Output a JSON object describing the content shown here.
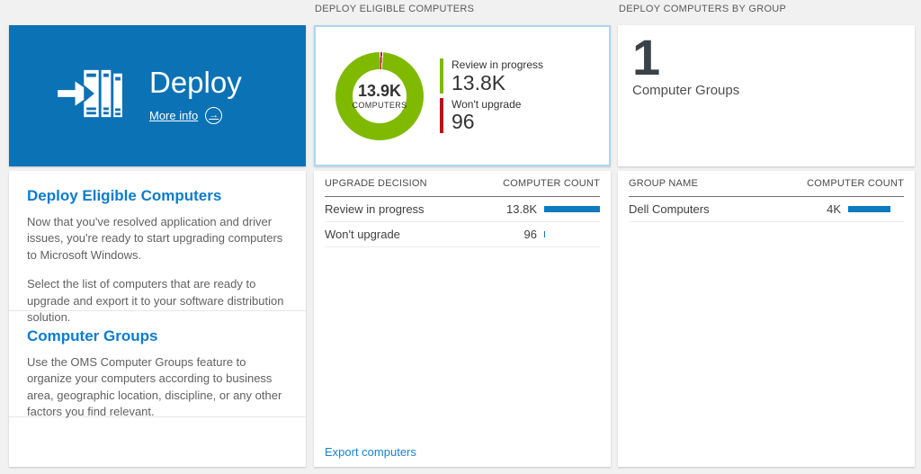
{
  "colors": {
    "page_bg": "#f1f1f1",
    "tile_blue": "#0b72b5",
    "accent_blue": "#0c7ccd",
    "link_blue": "#1583d8",
    "bar_blue": "#0f7abf",
    "selected_border": "#a9d7f2",
    "donut_green": "#7fba00",
    "donut_red": "#ba141a"
  },
  "left": {
    "tile": {
      "title": "Deploy",
      "more_info_label": "More info",
      "arrow_glyph": "→"
    },
    "sections": [
      {
        "heading": "Deploy Eligible Computers",
        "par1": "Now that you've resolved application and driver issues, you're ready to start upgrading computers to Microsoft Windows.",
        "par2": "Select the list of computers that are ready to upgrade and export it to your software distribution solution."
      },
      {
        "heading": "Computer Groups",
        "par1": "Use the OMS Computer Groups feature to organize your computers according to business area, geographic location, discipline, or any other factors you find relevant."
      }
    ]
  },
  "middle": {
    "header": "DEPLOY ELIGIBLE COMPUTERS",
    "donut": {
      "center_value": "13.9K",
      "center_label": "COMPUTERS",
      "ring_color": "#7fba00",
      "sliver_color": "#ba141a",
      "sliver_deg": 2.5,
      "legend": [
        {
          "label": "Review in progress",
          "value": "13.8K"
        },
        {
          "label": "Won't upgrade",
          "value": "96"
        }
      ]
    },
    "table": {
      "col1": "UPGRADE DECISION",
      "col2": "COMPUTER COUNT",
      "rows": [
        {
          "label": "Review in progress",
          "value": "13.8K",
          "bar": 1.0
        },
        {
          "label": "Won't upgrade",
          "value": "96",
          "bar": 0.02
        }
      ]
    },
    "footer_link": "Export computers"
  },
  "right": {
    "header": "DEPLOY COMPUTERS BY GROUP",
    "summary": {
      "count": "1",
      "label": "Computer Groups"
    },
    "table": {
      "col1": "GROUP NAME",
      "col2": "COMPUTER COUNT",
      "rows": [
        {
          "label": "Dell Computers",
          "value": "4K",
          "bar": 0.75
        }
      ]
    }
  },
  "chart_data": [
    {
      "type": "pie",
      "title": "Deploy Eligible Computers",
      "labels": [
        "Review in progress",
        "Won't upgrade"
      ],
      "values": [
        13800,
        96
      ],
      "colors": [
        "#7fba00",
        "#ba141a"
      ],
      "center_text": "13.9K COMPUTERS",
      "legend_position": "right"
    },
    {
      "type": "table",
      "title": "Upgrade decision counts",
      "columns": [
        "UPGRADE DECISION",
        "COMPUTER COUNT"
      ],
      "rows": [
        [
          "Review in progress",
          "13.8K"
        ],
        [
          "Won't upgrade",
          "96"
        ]
      ]
    },
    {
      "type": "table",
      "title": "Computers by group",
      "columns": [
        "GROUP NAME",
        "COMPUTER COUNT"
      ],
      "rows": [
        [
          "Dell Computers",
          "4K"
        ]
      ]
    }
  ]
}
